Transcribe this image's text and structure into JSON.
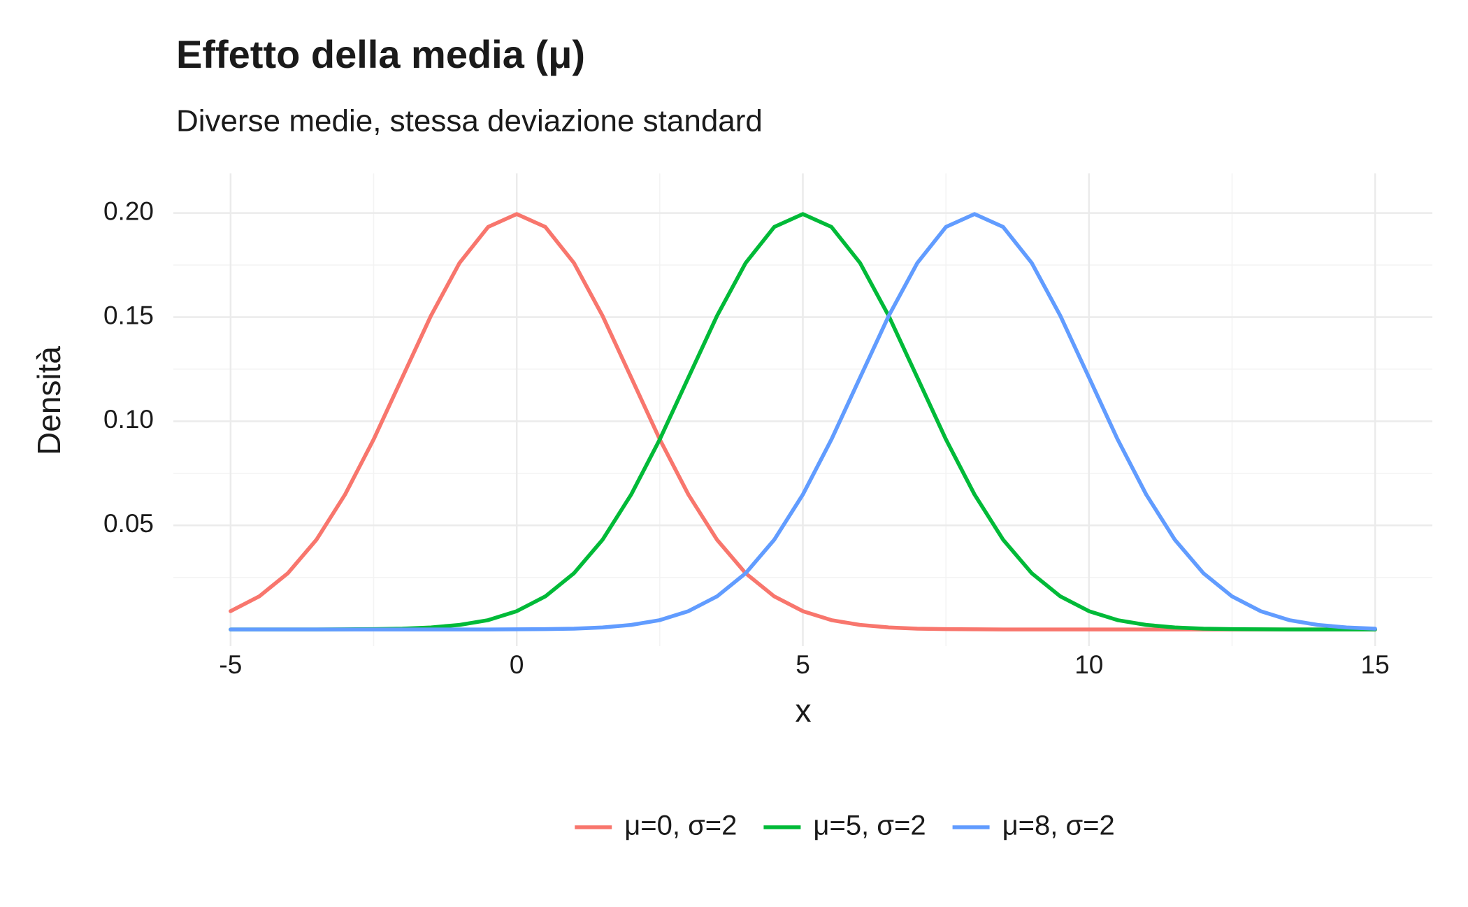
{
  "chart_data": {
    "type": "line",
    "title": "Effetto della media (μ)",
    "subtitle": "Diverse medie, stessa deviazione standard",
    "x_label": "x",
    "y_label": "Densità",
    "x": [
      -5,
      -4.5,
      -4,
      -3.5,
      -3,
      -2.5,
      -2,
      -1.5,
      -1,
      -0.5,
      0,
      0.5,
      1,
      1.5,
      2,
      2.5,
      3,
      3.5,
      4,
      4.5,
      5,
      5.5,
      6,
      6.5,
      7,
      7.5,
      8,
      8.5,
      9,
      9.5,
      10,
      10.5,
      11,
      11.5,
      12,
      12.5,
      13,
      13.5,
      14,
      14.5,
      15
    ],
    "series": [
      {
        "name": "μ=0, σ=2",
        "color": "#F8766D",
        "values": [
          0.0088,
          0.0159,
          0.027,
          0.0431,
          0.0648,
          0.0913,
          0.121,
          0.1506,
          0.176,
          0.1933,
          0.1995,
          0.1933,
          0.176,
          0.1506,
          0.121,
          0.0913,
          0.0648,
          0.0431,
          0.027,
          0.0159,
          0.0088,
          0.0045,
          0.0022,
          0.001,
          0.0004,
          0.0002,
          0.0001,
          0,
          0,
          0,
          0,
          0,
          0,
          0,
          0,
          0,
          0,
          0,
          0,
          0,
          0
        ]
      },
      {
        "name": "μ=5, σ=2",
        "color": "#00BA38",
        "values": [
          0,
          0,
          0,
          0,
          0.0001,
          0.0002,
          0.0004,
          0.001,
          0.0022,
          0.0045,
          0.0088,
          0.0159,
          0.027,
          0.0431,
          0.0648,
          0.0913,
          0.121,
          0.1506,
          0.176,
          0.1933,
          0.1995,
          0.1933,
          0.176,
          0.1506,
          0.121,
          0.0913,
          0.0648,
          0.0431,
          0.027,
          0.0159,
          0.0088,
          0.0045,
          0.0022,
          0.001,
          0.0004,
          0.0002,
          0.0001,
          0,
          0,
          0,
          0
        ]
      },
      {
        "name": "μ=8, σ=2",
        "color": "#619CFF",
        "values": [
          0,
          0,
          0,
          0,
          0,
          0,
          0,
          0,
          0,
          0,
          0.0001,
          0.0002,
          0.0004,
          0.001,
          0.0022,
          0.0045,
          0.0088,
          0.0159,
          0.027,
          0.0431,
          0.0648,
          0.0913,
          0.121,
          0.1506,
          0.176,
          0.1933,
          0.1995,
          0.1933,
          0.176,
          0.1506,
          0.121,
          0.0913,
          0.0648,
          0.0431,
          0.027,
          0.0159,
          0.0088,
          0.0045,
          0.0022,
          0.001,
          0.0004
        ]
      }
    ],
    "xlim": [
      -6,
      16
    ],
    "ylim": [
      -0.008,
      0.219
    ],
    "xticks": [
      -5,
      0,
      5,
      10,
      15
    ],
    "yticks": [
      {
        "value": 0.05,
        "label": "0.05"
      },
      {
        "value": 0.1,
        "label": "0.10"
      },
      {
        "value": 0.15,
        "label": "0.15"
      },
      {
        "value": 0.2,
        "label": "0.20"
      }
    ],
    "xminor": [
      -2.5,
      2.5,
      7.5,
      12.5
    ],
    "yminor": [
      0.025,
      0.075,
      0.125,
      0.175
    ],
    "grid": true,
    "legend": "bottom"
  }
}
